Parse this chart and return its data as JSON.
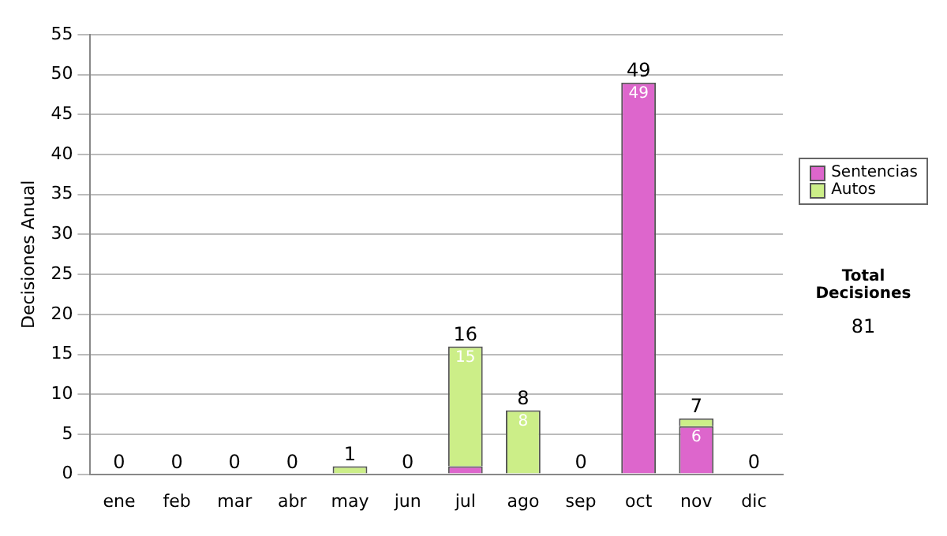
{
  "chart_data": {
    "type": "bar",
    "ylabel": "Decisiones Anual",
    "categories": [
      "ene",
      "feb",
      "mar",
      "abr",
      "may",
      "jun",
      "jul",
      "ago",
      "sep",
      "oct",
      "nov",
      "dic"
    ],
    "stacked": true,
    "series": [
      {
        "name": "Sentencias",
        "color": "#dd66cc",
        "values": [
          0,
          0,
          0,
          0,
          0,
          0,
          1,
          0,
          0,
          49,
          6,
          0
        ],
        "value_labels": [
          null,
          null,
          null,
          null,
          null,
          null,
          null,
          null,
          null,
          "49",
          "6",
          null
        ]
      },
      {
        "name": "Autos",
        "color": "#ccee88",
        "values": [
          0,
          0,
          0,
          0,
          1,
          0,
          15,
          8,
          0,
          0,
          1,
          0
        ],
        "value_labels": [
          null,
          null,
          null,
          null,
          null,
          null,
          "15",
          "8",
          null,
          null,
          null,
          null
        ]
      }
    ],
    "totals": [
      "0",
      "0",
      "0",
      "0",
      "1",
      "0",
      "16",
      "8",
      "0",
      "49",
      "7",
      "0"
    ],
    "ylim": [
      0,
      55
    ],
    "yticks": [
      0,
      5,
      10,
      15,
      20,
      25,
      30,
      35,
      40,
      45,
      50,
      55
    ],
    "grid": "y",
    "legend": "right",
    "annotations": [
      "Total Decisiones",
      "81"
    ]
  }
}
